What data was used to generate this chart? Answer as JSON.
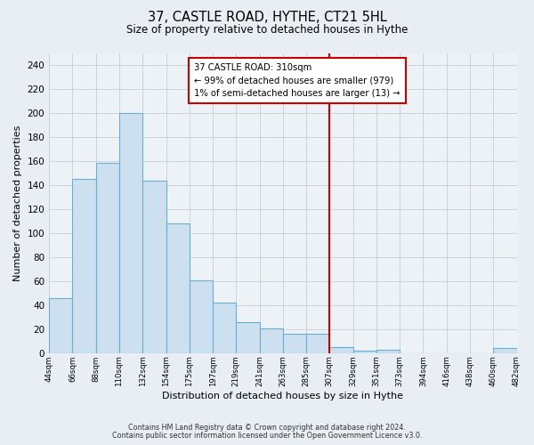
{
  "title": "37, CASTLE ROAD, HYTHE, CT21 5HL",
  "subtitle": "Size of property relative to detached houses in Hythe",
  "xlabel": "Distribution of detached houses by size in Hythe",
  "ylabel": "Number of detached properties",
  "bar_labels": [
    "44sqm",
    "66sqm",
    "88sqm",
    "110sqm",
    "132sqm",
    "154sqm",
    "175sqm",
    "197sqm",
    "219sqm",
    "241sqm",
    "263sqm",
    "285sqm",
    "307sqm",
    "329sqm",
    "351sqm",
    "373sqm",
    "394sqm",
    "416sqm",
    "438sqm",
    "460sqm",
    "482sqm"
  ],
  "bar_heights": [
    46,
    145,
    159,
    200,
    144,
    108,
    61,
    42,
    26,
    21,
    16,
    16,
    5,
    2,
    3,
    0,
    0,
    0,
    0,
    4
  ],
  "bar_color": "#cce0f0",
  "bar_edge_color": "#6aaed6",
  "ylim": [
    0,
    250
  ],
  "yticks": [
    0,
    20,
    40,
    60,
    80,
    100,
    120,
    140,
    160,
    180,
    200,
    220,
    240
  ],
  "vline_x": 12,
  "vline_color": "#cc0000",
  "annotation_title": "37 CASTLE ROAD: 310sqm",
  "annotation_line1": "← 99% of detached houses are smaller (979)",
  "annotation_line2": "1% of semi-detached houses are larger (13) →",
  "annotation_box_facecolor": "#ffffff",
  "annotation_box_edgecolor": "#cc0000",
  "footnote1": "Contains HM Land Registry data © Crown copyright and database right 2024.",
  "footnote2": "Contains public sector information licensed under the Open Government Licence v3.0.",
  "fig_facecolor": "#e8eef4",
  "plot_facecolor": "#edf2f7"
}
